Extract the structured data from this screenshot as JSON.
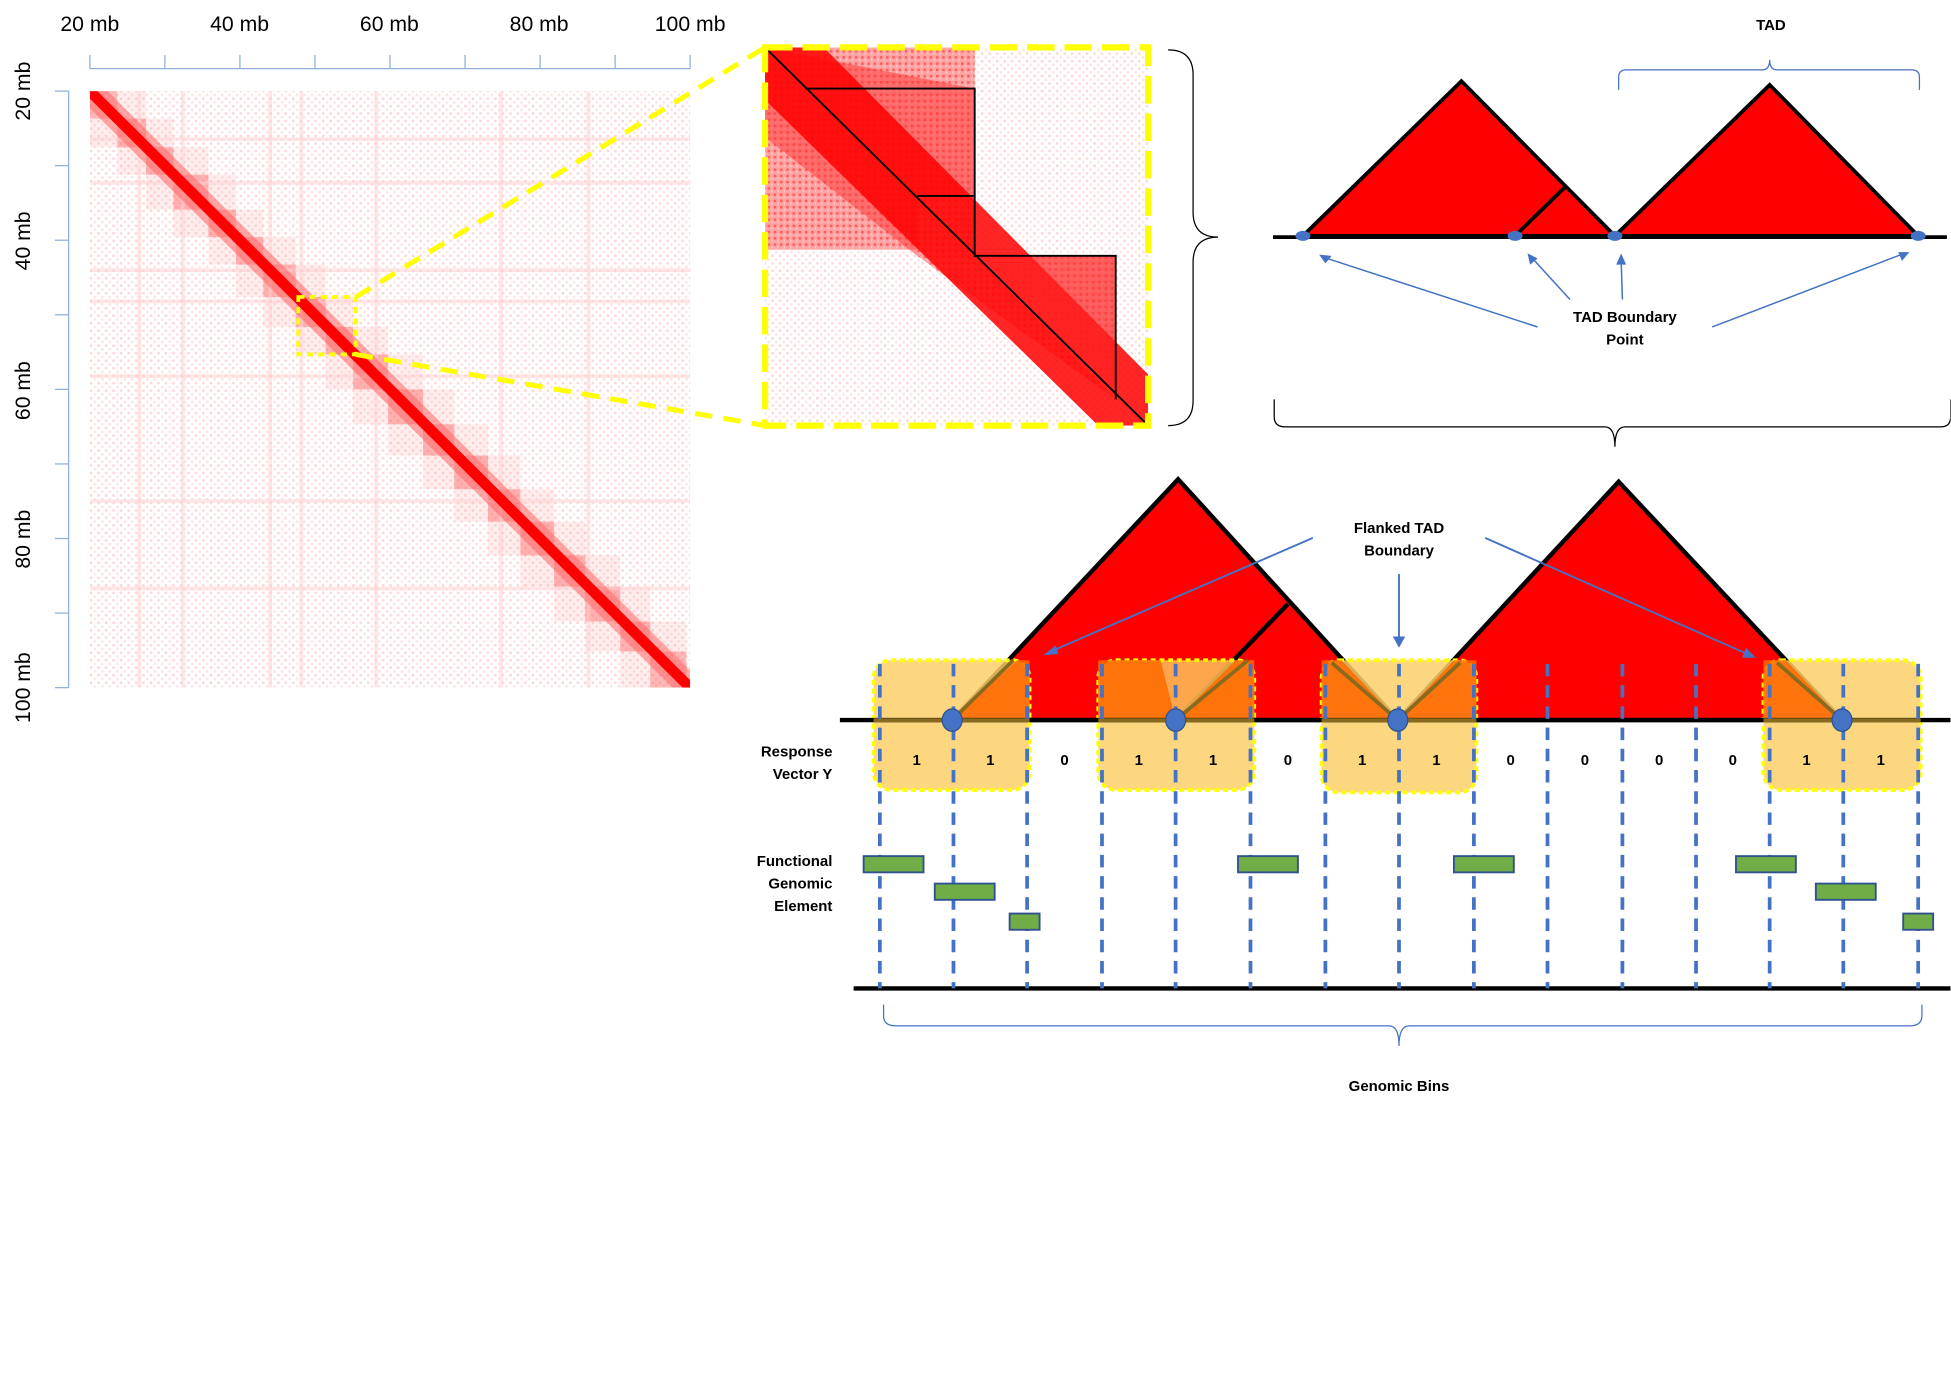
{
  "heatmap": {
    "x_ticks": [
      "20 mb",
      "40 mb",
      "60 mb",
      "80 mb",
      "100 mb"
    ],
    "y_ticks": [
      "20 mb",
      "40 mb",
      "60 mb",
      "80 mb",
      "100 mb"
    ]
  },
  "labels": {
    "tad": "TAD",
    "tad_boundary_point_1": "TAD Boundary",
    "tad_boundary_point_2": "Point",
    "flanked_1": "Flanked TAD",
    "flanked_2": "Boundary",
    "response_1": "Response",
    "response_2": "Vector Y",
    "functional_1": "Functional",
    "functional_2": "Genomic",
    "functional_3": "Element",
    "genomic_bins": "Genomic Bins"
  },
  "response_vector": [
    "1",
    "1",
    "0",
    "1",
    "1",
    "0",
    "1",
    "1",
    "0",
    "0",
    "0",
    "0",
    "1",
    "1"
  ],
  "colors": {
    "tad_fill": "#ff0000",
    "highlight_dash": "#ffff00",
    "boundary_box_fill": "#fdd97c",
    "boundary_point": "#4472c4",
    "arrow": "#4472c4",
    "element": "#70ad47",
    "axis": "#8fb0d8"
  }
}
